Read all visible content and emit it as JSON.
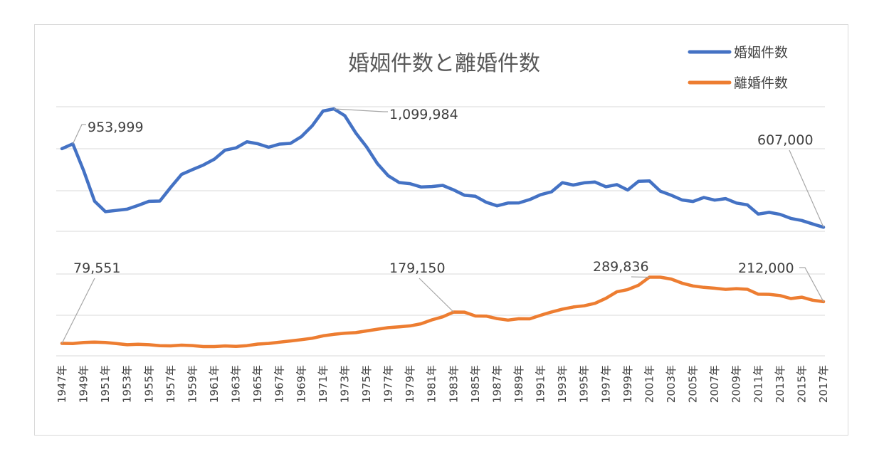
{
  "chart_data": {
    "type": "line",
    "title": "婚姻件数と離婚件数",
    "xlabel": "",
    "ylabel": "",
    "legend_position": "top-right",
    "grid": true,
    "x": [
      "1947年",
      "1948年",
      "1949年",
      "1950年",
      "1951年",
      "1952年",
      "1953年",
      "1954年",
      "1955年",
      "1956年",
      "1957年",
      "1958年",
      "1959年",
      "1960年",
      "1961年",
      "1962年",
      "1963年",
      "1964年",
      "1965年",
      "1966年",
      "1967年",
      "1968年",
      "1969年",
      "1970年",
      "1971年",
      "1972年",
      "1973年",
      "1974年",
      "1975年",
      "1976年",
      "1977年",
      "1978年",
      "1979年",
      "1980年",
      "1981年",
      "1982年",
      "1983年",
      "1984年",
      "1985年",
      "1986年",
      "1987年",
      "1988年",
      "1989年",
      "1990年",
      "1991年",
      "1992年",
      "1993年",
      "1994年",
      "1995年",
      "1996年",
      "1997年",
      "1998年",
      "1999年",
      "2000年",
      "2001年",
      "2002年",
      "2003年",
      "2004年",
      "2005年",
      "2006年",
      "2007年",
      "2008年",
      "2009年",
      "2010年",
      "2011年",
      "2012年",
      "2013年",
      "2014年",
      "2015年",
      "2016年",
      "2017年"
    ],
    "tick_labels": [
      "1947年",
      "1949年",
      "1951年",
      "1953年",
      "1955年",
      "1957年",
      "1959年",
      "1961年",
      "1963年",
      "1965年",
      "1967年",
      "1969年",
      "1971年",
      "1973年",
      "1975年",
      "1977年",
      "1979年",
      "1981年",
      "1983年",
      "1985年",
      "1987年",
      "1989年",
      "1991年",
      "1993年",
      "1995年",
      "1997年",
      "1999年",
      "2001年",
      "2003年",
      "2005年",
      "2007年",
      "2009年",
      "2011年",
      "2013年",
      "2015年",
      "2017年"
    ],
    "series": [
      {
        "name": "婚姻件数",
        "color": "#4472c4",
        "values": [
          934170,
          953999,
          842170,
          715081,
          671905,
          676995,
          682077,
          697809,
          714861,
          715934,
          773362,
          826902,
          847135,
          866115,
          890158,
          928341,
          937516,
          963130,
          954852,
          940120,
          953096,
          956312,
          984142,
          1029405,
          1091229,
          1099984,
          1071923,
          1000455,
          941628,
          871543,
          821029,
          793257,
          788505,
          774702,
          776531,
          781252,
          762552,
          739991,
          735850,
          710962,
          696173,
          707716,
          708316,
          722138,
          742264,
          754441,
          792658,
          782738,
          791888,
          795080,
          775651,
          784595,
          762028,
          798138,
          799999,
          757331,
          740191,
          720417,
          714265,
          730971,
          719822,
          726106,
          707734,
          700214,
          661895,
          668869,
          660613,
          643749,
          635156,
          620531,
          607000
        ],
        "annotations": [
          {
            "index": 1,
            "label": "953,999"
          },
          {
            "index": 25,
            "label": "1,099,984"
          },
          {
            "index": 70,
            "label": "607,000"
          }
        ]
      },
      {
        "name": "離婚件数",
        "color": "#ed7d31",
        "values": [
          79551,
          79032,
          82575,
          83689,
          82331,
          79021,
          75255,
          76759,
          75267,
          72040,
          71651,
          74004,
          72455,
          69410,
          69323,
          71394,
          69996,
          72306,
          77195,
          79432,
          83478,
          87327,
          91280,
          95937,
          103595,
          108382,
          111877,
          113622,
          119135,
          124512,
          129485,
          132146,
          135250,
          141689,
          154221,
          163980,
          179150,
          178746,
          166640,
          166054,
          158227,
          153600,
          157811,
          157608,
          168969,
          179191,
          188297,
          195106,
          199016,
          206955,
          222635,
          243183,
          250529,
          264246,
          289836,
          289836,
          283854,
          270804,
          261917,
          257475,
          254832,
          251136,
          253353,
          251378,
          235719,
          235406,
          231383,
          222107,
          226215,
          216798,
          212000
        ],
        "annotations": [
          {
            "index": 0,
            "label": "79,551"
          },
          {
            "index": 36,
            "label": "179,150"
          },
          {
            "index": 54,
            "label": "289,836"
          },
          {
            "index": 70,
            "label": "212,000"
          }
        ]
      }
    ]
  }
}
